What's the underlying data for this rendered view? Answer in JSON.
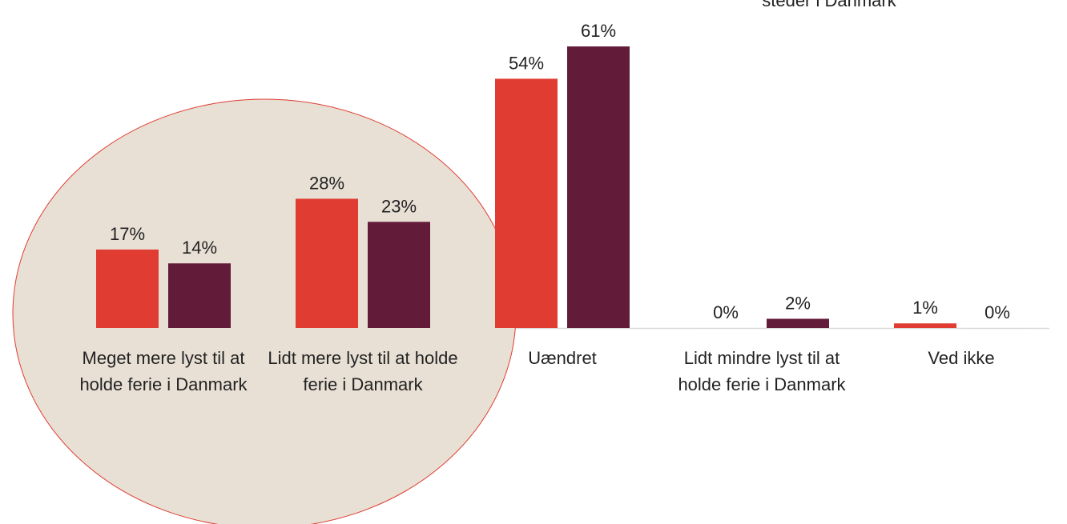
{
  "chart_data": {
    "type": "bar",
    "annotation": "steder i Danmark",
    "categories": [
      "Meget mere lyst til at holde ferie i Danmark",
      "Lidt mere lyst til at holde ferie i Danmark",
      "Uændret",
      "Lidt mindre lyst til at holde ferie i Danmark",
      "Ved ikke"
    ],
    "series": [
      {
        "color": "#e03c31",
        "values": [
          17,
          28,
          54,
          0,
          1
        ],
        "value_labels": [
          "17%",
          "28%",
          "54%",
          "0%",
          "1%"
        ]
      },
      {
        "color": "#631b3a",
        "values": [
          14,
          23,
          61,
          2,
          0
        ],
        "value_labels": [
          "14%",
          "23%",
          "61%",
          "2%",
          "0%"
        ]
      }
    ]
  }
}
